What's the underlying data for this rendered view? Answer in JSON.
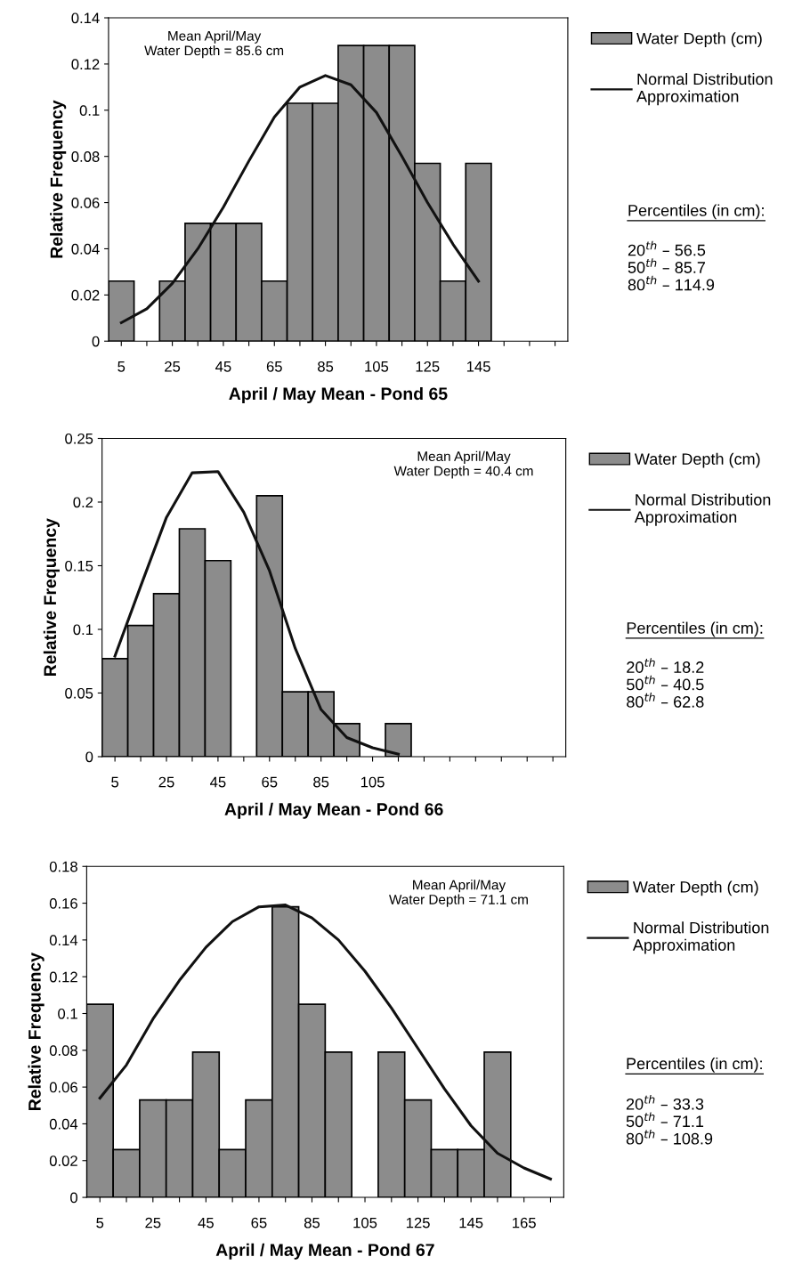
{
  "chart_data": [
    {
      "type": "bar",
      "xlabel": "April / May Mean - Pond 65",
      "ylabel": "Relative Frequency",
      "categories": [
        "5",
        null,
        "25",
        null,
        "45",
        null,
        "65",
        null,
        "85",
        null,
        "105",
        null,
        "125",
        null,
        "145",
        null,
        null,
        null
      ],
      "series": [
        {
          "name": "Water Depth (cm)",
          "color": "#8c8c8c",
          "values": [
            0.026,
            null,
            0.026,
            0.051,
            0.051,
            0.051,
            0.026,
            0.103,
            0.103,
            0.128,
            0.128,
            0.128,
            0.077,
            0.026,
            0.077,
            null,
            null,
            null
          ]
        },
        {
          "name": "Normal Distribution\nApproximation",
          "type": "line",
          "color": "#111111",
          "values": [
            0.008,
            0.014,
            0.025,
            0.04,
            0.058,
            0.078,
            0.097,
            0.11,
            0.115,
            0.111,
            0.099,
            0.08,
            0.06,
            0.042,
            0.026,
            null,
            null,
            null
          ]
        }
      ],
      "ylim": [
        0,
        0.14
      ],
      "yticks": [
        0,
        0.02,
        0.04,
        0.06,
        0.08,
        0.1,
        0.12,
        0.14
      ],
      "legend": "right",
      "annotations": [
        "Mean April/May\nWater Depth = 85.6 cm",
        "Percentiles (in cm):",
        "20$^{th}$ – 56.5\n50$^{th}$ – 85.7\n80$^{th}$ – 114.9"
      ]
    },
    {
      "type": "bar",
      "xlabel": "April / May Mean - Pond 66",
      "ylabel": "Relative Frequency",
      "categories": [
        "5",
        null,
        "25",
        null,
        "45",
        null,
        "65",
        null,
        "85",
        null,
        "105",
        null,
        null,
        null,
        null,
        null,
        null,
        null
      ],
      "series": [
        {
          "name": "Water Depth (cm)",
          "color": "#8c8c8c",
          "values": [
            0.077,
            0.103,
            0.128,
            0.179,
            0.154,
            null,
            0.205,
            0.051,
            0.051,
            0.026,
            null,
            0.026,
            null,
            null,
            null,
            null,
            null,
            null
          ]
        },
        {
          "name": "Normal Distribution\nApproximation",
          "type": "line",
          "color": "#111111",
          "values": [
            0.079,
            0.134,
            0.188,
            0.223,
            0.224,
            0.192,
            0.146,
            0.085,
            0.037,
            0.015,
            0.007,
            0.002,
            null,
            null,
            null,
            null,
            null,
            null
          ]
        }
      ],
      "ylim": [
        0,
        0.25
      ],
      "yticks": [
        0,
        0.05,
        0.1,
        0.15,
        0.2,
        0.25
      ],
      "legend": "right",
      "annotations": [
        "Mean April/May\nWater Depth = 40.4 cm",
        "Percentiles (in cm):",
        "20$^{th}$ – 18.2\n50$^{th}$ – 40.5\n80$^{th}$ – 62.8"
      ]
    },
    {
      "type": "bar",
      "xlabel": "April / May Mean - Pond 67",
      "ylabel": "Relative Frequency",
      "categories": [
        "5",
        null,
        "25",
        null,
        "45",
        null,
        "65",
        null,
        "85",
        null,
        "105",
        null,
        "125",
        null,
        "145",
        null,
        "165",
        null
      ],
      "series": [
        {
          "name": "Water Depth (cm)",
          "color": "#8c8c8c",
          "values": [
            0.105,
            0.026,
            0.053,
            0.053,
            0.079,
            0.026,
            0.053,
            0.158,
            0.105,
            0.079,
            null,
            0.079,
            0.053,
            0.026,
            0.026,
            0.079,
            null,
            null
          ]
        },
        {
          "name": "Normal Distribution\nApproximation",
          "type": "line",
          "color": "#111111",
          "values": [
            0.054,
            0.072,
            0.097,
            0.118,
            0.136,
            0.15,
            0.158,
            0.159,
            0.152,
            0.14,
            0.123,
            0.103,
            0.081,
            0.059,
            0.039,
            0.024,
            0.016,
            0.01
          ]
        }
      ],
      "ylim": [
        0,
        0.18
      ],
      "yticks": [
        0,
        0.02,
        0.04,
        0.06,
        0.08,
        0.1,
        0.12,
        0.14,
        0.16,
        0.18
      ],
      "legend": "right",
      "annotations": [
        "Mean April/May\nWater Depth = 71.1 cm",
        "Percentiles (in cm):",
        "20$^{th}$ – 33.3\n50$^{th}$ – 71.1\n80$^{th}$ – 108.9"
      ]
    }
  ]
}
